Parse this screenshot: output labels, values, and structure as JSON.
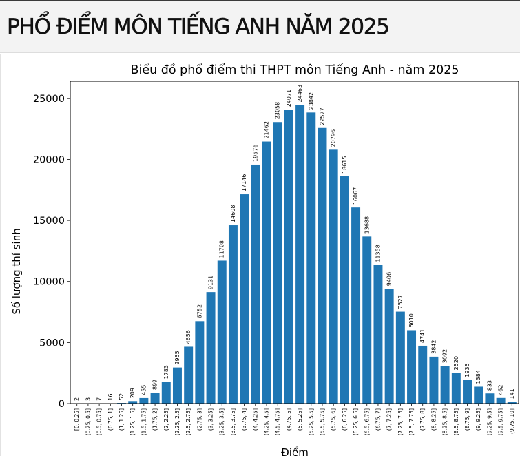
{
  "page": {
    "heading": "PHỔ ĐIỂM MÔN TIẾNG ANH NĂM 2025"
  },
  "chart_data": {
    "type": "bar",
    "title": "Biểu đồ phổ điểm thi THPT môn Tiếng Anh - năm 2025",
    "xlabel": "Điểm",
    "ylabel": "Số lượng thí sinh",
    "ylim": [
      0,
      26400
    ],
    "yticks": [
      0,
      5000,
      10000,
      15000,
      20000,
      25000
    ],
    "grid": false,
    "bar_color": "#1f77b4",
    "categories": [
      "[0, 0.25]",
      "(0.25, 0.5]",
      "(0.5, 0.75]",
      "(0.75, 1]",
      "(1, 1.25]",
      "(1.25, 1.5]",
      "(1.5, 1.75]",
      "(1.75, 2]",
      "(2, 2.25]",
      "(2.25, 2.5]",
      "(2.5, 2.75]",
      "(2.75, 3]",
      "(3, 3.25]",
      "(3.25, 3.5]",
      "(3.5, 3.75]",
      "(3.75, 4]",
      "(4, 4.25]",
      "(4.25, 4.5]",
      "(4.5, 4.75]",
      "(4.75, 5]",
      "(5, 5.25]",
      "(5.25, 5.5]",
      "(5.5, 5.75]",
      "(5.75, 6]",
      "(6, 6.25]",
      "(6.25, 6.5]",
      "(6.5, 6.75]",
      "(6.75, 7]",
      "(7, 7.25]",
      "(7.25, 7.5]",
      "(7.5, 7.75]",
      "(7.75, 8]",
      "(8, 8.25]",
      "(8.25, 8.5]",
      "(8.5, 8.75]",
      "(8.75, 9]",
      "(9, 9.25]",
      "(9.25, 9.5]",
      "(9.5, 9.75]",
      "(9.75, 10]"
    ],
    "values": [
      2,
      3,
      7,
      16,
      52,
      209,
      455,
      899,
      1783,
      2955,
      4656,
      6752,
      9131,
      11708,
      14608,
      17146,
      19576,
      21462,
      23058,
      24071,
      24463,
      23842,
      22577,
      20796,
      18615,
      16067,
      13688,
      11358,
      9406,
      7527,
      6010,
      4741,
      3842,
      3092,
      2520,
      1935,
      1384,
      833,
      462,
      141
    ]
  }
}
